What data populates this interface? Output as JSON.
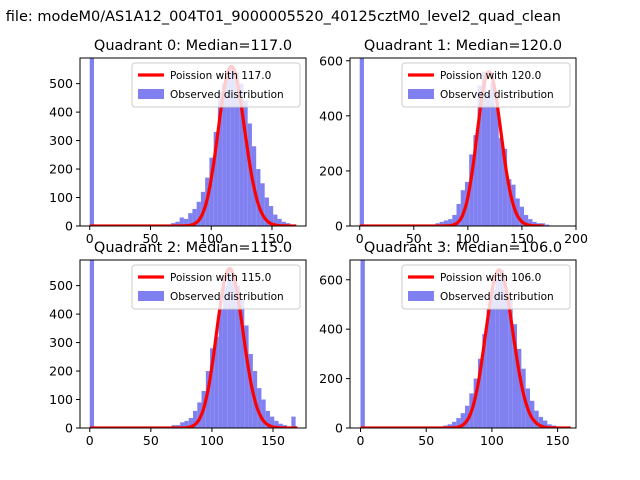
{
  "figure": {
    "suptitle": "n file: modeM0/AS1A12_004T01_9000005520_40125cztM0_level2_quad_clean",
    "colors": {
      "hist": "#8080f0",
      "hist_light": "#c9c9f8",
      "poisson": "#ff0000",
      "poisson_light": "#ff9a9a"
    }
  },
  "chart_data": [
    {
      "type": "bar",
      "title": "Quadrant 0: Median=117.0",
      "median": 117.0,
      "xlim": [
        -8,
        178
      ],
      "ylim": [
        0,
        590
      ],
      "xticks": [
        0,
        50,
        100,
        150
      ],
      "yticks": [
        0,
        100,
        200,
        300,
        400,
        500
      ],
      "bin_width": 3.5,
      "bins_x": [
        0,
        67,
        70.5,
        74,
        77.5,
        81,
        84.5,
        88,
        91.5,
        95,
        98.5,
        102,
        105.5,
        109,
        112.5,
        116,
        119.5,
        123,
        126.5,
        130,
        133.5,
        137,
        140.5,
        144,
        147.5,
        151,
        154.5,
        158,
        161.5,
        165
      ],
      "bins_y": [
        1230,
        10,
        15,
        30,
        25,
        45,
        60,
        85,
        120,
        170,
        240,
        330,
        470,
        500,
        550,
        560,
        540,
        500,
        440,
        360,
        280,
        200,
        150,
        100,
        70,
        40,
        25,
        15,
        10,
        5
      ],
      "legend": [
        "Poission with 117.0",
        "Observed distribution"
      ],
      "legend_loc": "upper right"
    },
    {
      "type": "bar",
      "title": "Quadrant 1: Median=120.0",
      "median": 120.0,
      "xlim": [
        -9,
        200
      ],
      "ylim": [
        0,
        610
      ],
      "xticks": [
        0,
        50,
        100,
        150,
        200
      ],
      "yticks": [
        0,
        200,
        400,
        600
      ],
      "bin_width": 3.9,
      "bins_x": [
        0,
        70,
        73.9,
        77.8,
        81.7,
        85.6,
        89.5,
        93.4,
        97.3,
        101.2,
        105.1,
        109,
        112.9,
        116.8,
        120.7,
        124.6,
        128.5,
        132.4,
        136.3,
        140.2,
        144.1,
        148,
        151.9,
        155.8,
        159.7,
        163.6,
        167.5,
        171.4
      ],
      "bins_y": [
        1230,
        10,
        15,
        20,
        25,
        40,
        80,
        130,
        160,
        260,
        330,
        510,
        560,
        480,
        520,
        430,
        320,
        280,
        170,
        150,
        100,
        70,
        40,
        25,
        15,
        10,
        10,
        5
      ],
      "legend": [
        "Poission with 120.0",
        "Observed distribution"
      ],
      "legend_loc": "upper right"
    },
    {
      "type": "bar",
      "title": "Quadrant 2: Median=115.0",
      "median": 115.0,
      "xlim": [
        -8,
        177
      ],
      "ylim": [
        0,
        590
      ],
      "xticks": [
        0,
        50,
        100,
        150
      ],
      "yticks": [
        0,
        100,
        200,
        300,
        400,
        500
      ],
      "bin_width": 3.5,
      "bins_x": [
        0,
        67,
        70.5,
        74,
        77.5,
        81,
        84.5,
        88,
        91.5,
        95,
        98.5,
        102,
        105.5,
        109,
        112.5,
        116,
        119.5,
        123,
        126.5,
        130,
        133.5,
        137,
        140.5,
        144,
        147.5,
        151,
        154.5,
        158,
        161.5,
        165
      ],
      "bins_y": [
        1230,
        10,
        10,
        20,
        25,
        35,
        60,
        90,
        130,
        200,
        280,
        320,
        420,
        500,
        560,
        520,
        500,
        450,
        360,
        260,
        200,
        140,
        100,
        60,
        40,
        25,
        15,
        10,
        5,
        40
      ],
      "legend": [
        "Poission with 115.0",
        "Observed distribution"
      ],
      "legend_loc": "upper right"
    },
    {
      "type": "bar",
      "title": "Quadrant 3: Median=106.0",
      "median": 106.0,
      "xlim": [
        -8,
        164
      ],
      "ylim": [
        0,
        680
      ],
      "xticks": [
        0,
        50,
        100,
        150
      ],
      "yticks": [
        0,
        200,
        400,
        600
      ],
      "bin_width": 3.3,
      "bins_x": [
        0,
        63,
        66.3,
        69.6,
        72.9,
        76.2,
        79.5,
        82.8,
        86.1,
        89.4,
        92.7,
        96,
        99.3,
        102.6,
        105.9,
        109.2,
        112.5,
        115.8,
        119.1,
        122.4,
        125.7,
        129,
        132.3,
        135.6,
        138.9,
        142.2,
        145.5
      ],
      "bins_y": [
        1230,
        10,
        15,
        25,
        40,
        60,
        90,
        140,
        200,
        280,
        380,
        480,
        560,
        600,
        640,
        560,
        520,
        420,
        320,
        240,
        160,
        110,
        70,
        45,
        30,
        15,
        10
      ],
      "legend": [
        "Poission with 106.0",
        "Observed distribution"
      ],
      "legend_loc": "upper right"
    }
  ]
}
